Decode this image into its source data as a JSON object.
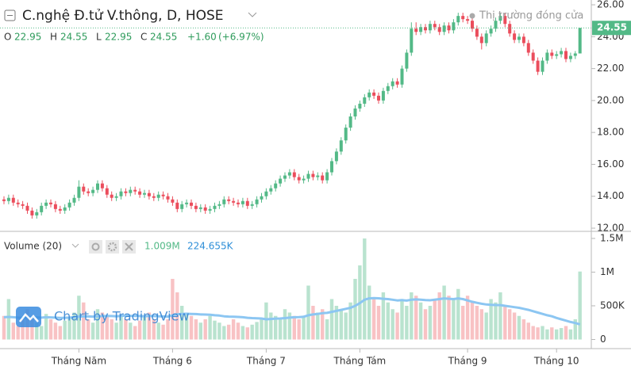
{
  "chart_data": {
    "type": "candlestick",
    "title": "C.nghệ Đ.tử V.thông, D, HOSE",
    "status": "Thị trường đóng cửa",
    "legend_letters": [
      "O",
      "H",
      "L",
      "C"
    ],
    "change": {
      "value": 1.6,
      "label": "+1.60"
    },
    "change_pct": {
      "value": 6.97,
      "label": "(+6.97%)"
    },
    "categories": [
      null,
      null,
      null,
      null,
      null,
      null,
      null,
      null,
      null,
      null,
      null,
      null,
      null,
      null,
      null,
      null,
      "Tháng Năm",
      null,
      null,
      null,
      null,
      null,
      null,
      null,
      null,
      null,
      null,
      null,
      null,
      null,
      null,
      null,
      null,
      null,
      null,
      null,
      "Tháng 6",
      null,
      null,
      null,
      null,
      null,
      null,
      null,
      null,
      null,
      null,
      null,
      null,
      null,
      null,
      null,
      null,
      null,
      null,
      null,
      "Tháng 7",
      null,
      null,
      null,
      null,
      null,
      null,
      null,
      null,
      null,
      null,
      null,
      null,
      null,
      null,
      null,
      null,
      null,
      null,
      null,
      "Tháng Tám",
      null,
      null,
      null,
      null,
      null,
      null,
      null,
      null,
      null,
      null,
      null,
      null,
      null,
      null,
      null,
      null,
      null,
      null,
      null,
      null,
      null,
      null,
      "Tháng 9",
      null,
      null,
      null,
      null,
      null,
      null,
      null,
      null,
      null,
      null,
      null,
      null,
      null,
      null,
      null,
      null,
      null,
      null,
      "Tháng 10",
      null,
      null,
      null,
      null,
      null
    ],
    "open": [
      13.8,
      13.7,
      13.9,
      13.6,
      13.5,
      13.4,
      13.1,
      12.8,
      13.0,
      13.4,
      13.6,
      13.5,
      13.2,
      13.1,
      13.3,
      13.6,
      13.9,
      14.6,
      14.3,
      14.2,
      14.4,
      14.8,
      14.5,
      14.1,
      13.9,
      14.0,
      14.3,
      14.2,
      14.4,
      14.3,
      14.1,
      14.2,
      14.0,
      13.9,
      14.1,
      14.0,
      13.8,
      13.6,
      13.2,
      13.5,
      13.6,
      13.4,
      13.2,
      13.3,
      13.1,
      13.2,
      13.4,
      13.5,
      13.8,
      13.7,
      13.6,
      13.5,
      13.7,
      13.4,
      13.5,
      13.8,
      14.0,
      14.3,
      14.5,
      14.8,
      15.1,
      15.3,
      15.5,
      15.2,
      15.0,
      15.1,
      15.4,
      15.2,
      15.3,
      15.0,
      15.5,
      16.2,
      16.8,
      17.5,
      18.3,
      19.0,
      19.5,
      19.8,
      20.2,
      20.5,
      20.3,
      20.0,
      20.6,
      20.9,
      21.2,
      21.0,
      22.0,
      23.0,
      24.5,
      24.3,
      24.6,
      24.4,
      24.8,
      24.6,
      24.3,
      24.7,
      24.4,
      24.9,
      25.3,
      25.1,
      25.0,
      24.5,
      24.0,
      23.6,
      24.2,
      24.5,
      25.0,
      25.3,
      24.8,
      24.2,
      23.8,
      24.0,
      23.6,
      23.0,
      22.5,
      21.8,
      22.5,
      23.0,
      22.8,
      22.9,
      23.1,
      22.6,
      22.8,
      22.95
    ],
    "high": [
      14.0,
      14.1,
      14.1,
      13.8,
      13.7,
      13.6,
      13.3,
      13.2,
      13.6,
      13.8,
      13.8,
      13.7,
      13.4,
      13.5,
      13.8,
      14.1,
      15.0,
      14.8,
      14.5,
      14.6,
      15.0,
      15.0,
      14.7,
      14.3,
      14.2,
      14.5,
      14.5,
      14.6,
      14.6,
      14.5,
      14.4,
      14.4,
      14.2,
      14.3,
      14.3,
      14.2,
      14.0,
      13.8,
      13.7,
      13.8,
      13.8,
      13.6,
      13.5,
      13.5,
      13.4,
      13.6,
      13.7,
      14.0,
      14.0,
      13.9,
      13.8,
      13.9,
      13.9,
      13.7,
      14.0,
      14.2,
      14.5,
      14.7,
      15.0,
      15.3,
      15.5,
      15.7,
      15.7,
      15.4,
      15.3,
      15.6,
      15.6,
      15.5,
      15.5,
      15.7,
      16.4,
      17.0,
      17.7,
      18.5,
      19.2,
      19.7,
      20.0,
      20.4,
      20.7,
      20.7,
      20.5,
      20.8,
      21.1,
      21.4,
      21.4,
      22.2,
      23.2,
      24.9,
      24.9,
      24.8,
      24.8,
      25.0,
      25.0,
      24.8,
      24.9,
      24.9,
      25.1,
      25.5,
      25.5,
      25.3,
      25.2,
      24.7,
      24.2,
      24.4,
      24.7,
      25.2,
      25.5,
      25.5,
      25.0,
      24.4,
      24.2,
      24.2,
      23.8,
      23.2,
      22.7,
      22.7,
      23.2,
      23.2,
      23.1,
      23.3,
      23.3,
      23.0,
      23.1,
      24.55
    ],
    "low": [
      13.5,
      13.5,
      13.4,
      13.3,
      13.2,
      12.9,
      12.6,
      12.6,
      12.8,
      13.2,
      13.3,
      13.0,
      12.9,
      12.9,
      13.1,
      13.4,
      13.7,
      14.1,
      14.0,
      14.0,
      14.2,
      14.3,
      13.9,
      13.7,
      13.7,
      13.8,
      14.0,
      14.0,
      14.1,
      13.9,
      13.9,
      13.8,
      13.7,
      13.7,
      13.8,
      13.6,
      13.4,
      13.0,
      13.0,
      13.3,
      13.2,
      13.0,
      13.0,
      12.9,
      12.9,
      13.0,
      13.2,
      13.3,
      13.5,
      13.4,
      13.3,
      13.3,
      13.2,
      13.2,
      13.3,
      13.6,
      13.8,
      14.1,
      14.3,
      14.6,
      14.9,
      15.1,
      15.0,
      14.8,
      14.8,
      14.9,
      15.0,
      15.0,
      14.8,
      14.8,
      15.3,
      16.0,
      16.6,
      17.3,
      18.1,
      18.8,
      19.3,
      19.6,
      20.0,
      20.1,
      19.8,
      19.8,
      20.4,
      20.7,
      20.8,
      20.8,
      21.8,
      22.8,
      24.1,
      24.1,
      24.2,
      24.2,
      24.4,
      24.1,
      24.1,
      24.2,
      24.2,
      24.7,
      24.9,
      24.8,
      24.3,
      23.8,
      23.2,
      23.4,
      24.0,
      24.3,
      24.8,
      24.6,
      24.0,
      23.6,
      23.6,
      23.4,
      22.8,
      22.3,
      21.6,
      21.6,
      22.3,
      22.6,
      22.6,
      22.7,
      22.4,
      22.4,
      22.6,
      22.95
    ],
    "close": [
      13.7,
      13.9,
      13.6,
      13.5,
      13.4,
      13.1,
      12.8,
      13.0,
      13.4,
      13.6,
      13.5,
      13.2,
      13.1,
      13.3,
      13.6,
      13.9,
      14.6,
      14.3,
      14.2,
      14.4,
      14.8,
      14.5,
      14.1,
      13.9,
      14.0,
      14.3,
      14.2,
      14.4,
      14.3,
      14.1,
      14.2,
      14.0,
      13.9,
      14.1,
      14.0,
      13.8,
      13.6,
      13.2,
      13.5,
      13.6,
      13.4,
      13.2,
      13.3,
      13.1,
      13.2,
      13.4,
      13.5,
      13.8,
      13.7,
      13.6,
      13.5,
      13.7,
      13.4,
      13.5,
      13.8,
      14.0,
      14.3,
      14.5,
      14.8,
      15.1,
      15.3,
      15.5,
      15.2,
      15.0,
      15.1,
      15.4,
      15.2,
      15.3,
      15.0,
      15.5,
      16.2,
      16.8,
      17.5,
      18.3,
      19.0,
      19.5,
      19.8,
      20.2,
      20.5,
      20.3,
      20.0,
      20.6,
      20.9,
      21.2,
      21.0,
      22.0,
      23.0,
      24.5,
      24.3,
      24.6,
      24.4,
      24.8,
      24.6,
      24.3,
      24.7,
      24.4,
      24.9,
      25.3,
      25.1,
      25.0,
      24.5,
      24.0,
      23.6,
      24.2,
      24.5,
      25.0,
      25.3,
      24.8,
      24.2,
      23.8,
      24.0,
      23.6,
      23.0,
      22.5,
      21.8,
      22.5,
      23.0,
      22.8,
      22.9,
      23.1,
      22.6,
      22.8,
      22.95,
      24.55
    ],
    "color_up": "#53b987",
    "color_down": "#eb4d5c",
    "ylim": [
      11.9,
      26.3
    ],
    "yticks": [
      {
        "value": 12,
        "label": "12.00"
      },
      {
        "value": 14,
        "label": "14.00"
      },
      {
        "value": 16,
        "label": "16.00"
      },
      {
        "value": 18,
        "label": "18.00"
      },
      {
        "value": 20,
        "label": "20.00"
      },
      {
        "value": 22,
        "label": "22.00"
      },
      {
        "value": 24,
        "label": "24.00"
      },
      {
        "value": 26,
        "label": "26.00"
      }
    ],
    "volume": {
      "title": "Volume (20)",
      "values": [
        350000,
        600000,
        250000,
        200000,
        300000,
        450000,
        350000,
        250000,
        200000,
        380000,
        300000,
        250000,
        200000,
        280000,
        320000,
        400000,
        650000,
        550000,
        300000,
        250000,
        450000,
        400000,
        350000,
        300000,
        250000,
        350000,
        300000,
        250000,
        200000,
        280000,
        350000,
        400000,
        300000,
        250000,
        220000,
        300000,
        900000,
        700000,
        500000,
        400000,
        350000,
        300000,
        250000,
        300000,
        350000,
        280000,
        250000,
        200000,
        220000,
        300000,
        250000,
        200000,
        180000,
        220000,
        260000,
        300000,
        550000,
        400000,
        350000,
        300000,
        450000,
        400000,
        350000,
        300000,
        350000,
        800000,
        500000,
        400000,
        450000,
        300000,
        600000,
        500000,
        450000,
        400000,
        550000,
        900000,
        1100000,
        1500000,
        800000,
        600000,
        500000,
        700000,
        550000,
        450000,
        400000,
        600000,
        500000,
        700000,
        650000,
        550000,
        450000,
        500000,
        600000,
        700000,
        800000,
        650000,
        600000,
        750000,
        500000,
        650000,
        550000,
        500000,
        450000,
        400000,
        600000,
        550000,
        700000,
        500000,
        450000,
        400000,
        350000,
        300000,
        250000,
        200000,
        180000,
        200000,
        150000,
        180000,
        150000,
        170000,
        200000,
        150000,
        300000,
        1009000
      ],
      "ma_values": [
        330000,
        335000,
        330000,
        325000,
        320000,
        325000,
        330000,
        328000,
        325000,
        330000,
        328000,
        325000,
        320000,
        322000,
        325000,
        330000,
        340000,
        345000,
        342000,
        340000,
        345000,
        348000,
        350000,
        348000,
        345000,
        350000,
        355000,
        352000,
        350000,
        348000,
        345000,
        350000,
        348000,
        345000,
        342000,
        340000,
        360000,
        375000,
        380000,
        382000,
        380000,
        378000,
        372000,
        370000,
        368000,
        360000,
        355000,
        345000,
        340000,
        338000,
        335000,
        330000,
        322000,
        318000,
        315000,
        312000,
        300000,
        305000,
        310000,
        312000,
        318000,
        325000,
        330000,
        332000,
        338000,
        360000,
        372000,
        380000,
        390000,
        395000,
        410000,
        425000,
        440000,
        455000,
        470000,
        500000,
        540000,
        590000,
        610000,
        615000,
        612000,
        605000,
        600000,
        590000,
        580000,
        585000,
        578000,
        590000,
        595000,
        590000,
        585000,
        582000,
        590000,
        600000,
        610000,
        605000,
        600000,
        610000,
        600000,
        580000,
        560000,
        545000,
        530000,
        520000,
        515000,
        512000,
        510000,
        500000,
        490000,
        480000,
        470000,
        455000,
        440000,
        420000,
        400000,
        380000,
        360000,
        345000,
        320000,
        300000,
        280000,
        260000,
        245000,
        224655
      ],
      "value_label": "1.009M",
      "ma_value_label": "224.655K",
      "color_up": "#a8dcc3",
      "color_down": "#f6b3b5",
      "ma_color": "#8cc6f2",
      "ylim": [
        0,
        1570000
      ],
      "yticks": [
        {
          "value": 0,
          "label": "0"
        },
        {
          "value": 500000,
          "label": "500K"
        },
        {
          "value": 1000000,
          "label": "1M"
        },
        {
          "value": 1500000,
          "label": "1.5M"
        }
      ]
    },
    "watermark": "Chart by TradingView"
  }
}
